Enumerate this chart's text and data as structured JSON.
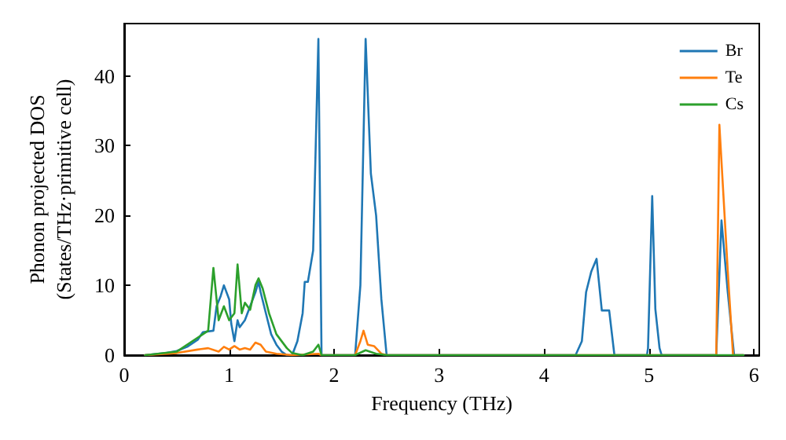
{
  "chart_data": {
    "type": "line",
    "xlabel": "Frequency (THz)",
    "ylabel": "Phonon projected DOS\n(States/THz·primitive cell)",
    "xlim": [
      0,
      6.05
    ],
    "xticks": [
      0,
      1,
      2,
      3,
      4,
      5,
      6
    ],
    "ylim": [
      0,
      47.5
    ],
    "yticks": [
      0,
      10,
      20,
      30,
      40
    ],
    "grid": false,
    "legend": "top right",
    "marker": "none",
    "line_style": "solid",
    "series": [
      {
        "name": "Br",
        "color": "#1f77b4",
        "x": [
          0.2,
          0.4,
          0.5,
          0.6,
          0.7,
          0.75,
          0.85,
          0.88,
          0.92,
          0.95,
          1.0,
          1.02,
          1.05,
          1.08,
          1.1,
          1.15,
          1.2,
          1.25,
          1.28,
          1.3,
          1.35,
          1.4,
          1.45,
          1.5,
          1.55,
          1.6,
          1.65,
          1.7,
          1.72,
          1.75,
          1.8,
          1.85,
          1.88,
          2.2,
          2.25,
          2.3,
          2.35,
          2.4,
          2.45,
          2.5,
          4.3,
          4.36,
          4.4,
          4.45,
          4.5,
          4.55,
          4.62,
          4.67,
          4.98,
          4.99,
          5.03,
          5.06,
          5.1,
          5.12,
          5.64,
          5.69,
          5.75,
          5.81,
          5.9
        ],
        "values": [
          0,
          0.3,
          0.6,
          1.2,
          2.2,
          3.3,
          3.5,
          7,
          8.5,
          10,
          8,
          4.5,
          2,
          5,
          4,
          5,
          7,
          9,
          10.5,
          9,
          6,
          3,
          1.5,
          0.5,
          0,
          0,
          2,
          6,
          10.5,
          10.5,
          15,
          45.3,
          0,
          0,
          10,
          45.3,
          26,
          20,
          8,
          0,
          0,
          2,
          9,
          12,
          13.8,
          6.4,
          6.4,
          0,
          0,
          1,
          22.8,
          6.6,
          1,
          0,
          0,
          19.3,
          9,
          0,
          0
        ]
      },
      {
        "name": "Te",
        "color": "#ff7f0e",
        "x": [
          0.2,
          0.5,
          0.7,
          0.8,
          0.9,
          0.95,
          1.0,
          1.05,
          1.1,
          1.15,
          1.2,
          1.25,
          1.3,
          1.35,
          1.45,
          1.6,
          1.85,
          1.88,
          2.2,
          2.25,
          2.28,
          2.32,
          2.38,
          2.45,
          2.5,
          5.64,
          5.67,
          5.75,
          5.8,
          5.9
        ],
        "values": [
          0,
          0.3,
          0.8,
          1,
          0.5,
          1.2,
          0.8,
          1.3,
          0.8,
          1,
          0.8,
          1.8,
          1.5,
          0.5,
          0.2,
          0,
          0.2,
          0,
          0,
          2,
          3.5,
          1.5,
          1.3,
          0.2,
          0,
          0,
          33,
          12,
          0,
          0
        ]
      },
      {
        "name": "Cs",
        "color": "#2ca02c",
        "x": [
          0.2,
          0.5,
          0.7,
          0.8,
          0.85,
          0.9,
          0.95,
          1.0,
          1.05,
          1.08,
          1.12,
          1.15,
          1.2,
          1.25,
          1.28,
          1.32,
          1.38,
          1.45,
          1.55,
          1.6,
          1.7,
          1.8,
          1.85,
          1.88,
          2.2,
          2.3,
          2.4,
          2.5,
          5.9
        ],
        "values": [
          0,
          0.5,
          2.5,
          3.5,
          12.5,
          5,
          7,
          5,
          6,
          13,
          6,
          7.5,
          6.5,
          10,
          11,
          9.5,
          6,
          3,
          1,
          0.3,
          0,
          0.5,
          1.5,
          0,
          0,
          0.7,
          0.2,
          0,
          0
        ]
      }
    ]
  }
}
